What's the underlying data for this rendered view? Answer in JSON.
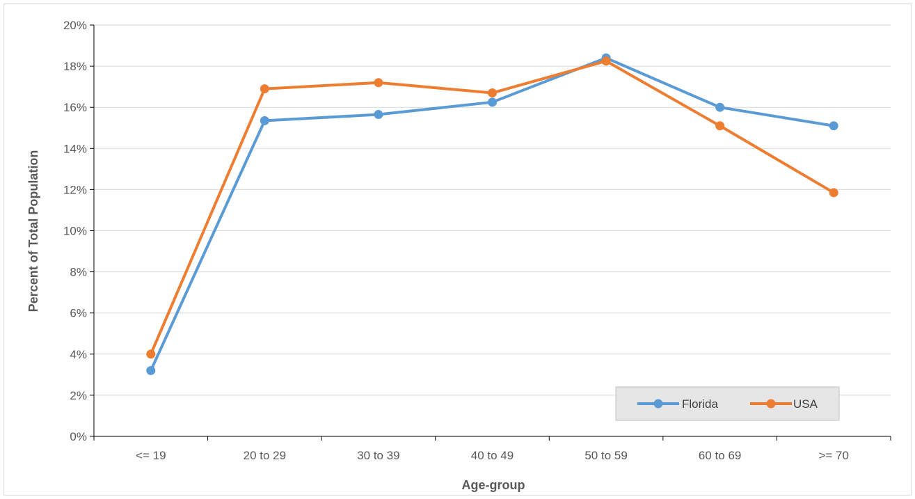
{
  "chart_data": {
    "type": "line",
    "title": "",
    "xlabel": "Age-group",
    "ylabel": "Percent of Total Population",
    "categories": [
      "<= 19",
      "20 to 29",
      "30 to 39",
      "40 to 49",
      "50 to 59",
      "60 to 69",
      ">= 70"
    ],
    "ylim": [
      0,
      20
    ],
    "yticks": [
      "0%",
      "2%",
      "4%",
      "6%",
      "8%",
      "10%",
      "12%",
      "14%",
      "16%",
      "18%",
      "20%"
    ],
    "grid": true,
    "legend_position": "bottom-right",
    "series": [
      {
        "name": "Florida",
        "color": "#5b9bd5",
        "values": [
          3.2,
          15.35,
          15.65,
          16.25,
          18.4,
          16.0,
          15.1
        ]
      },
      {
        "name": "USA",
        "color": "#ed7d31",
        "values": [
          4.0,
          16.9,
          17.2,
          16.7,
          18.25,
          15.1,
          11.85
        ]
      }
    ]
  }
}
